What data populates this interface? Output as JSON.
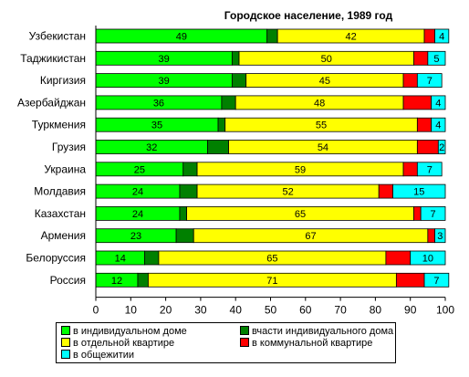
{
  "chart_data": {
    "type": "bar",
    "orientation": "horizontal",
    "stacked": true,
    "title": "Городское население, 1989 год",
    "xlim": [
      0,
      100
    ],
    "x_ticks": [
      0,
      10,
      20,
      30,
      40,
      50,
      60,
      70,
      80,
      90,
      100
    ],
    "grid": false,
    "legend_position": "bottom",
    "categories": [
      "Узбекистан",
      "Таджикистан",
      "Киргизия",
      "Азербайджан",
      "Туркмения",
      "Грузия",
      "Украина",
      "Молдавия",
      "Казахстан",
      "Армения",
      "Белоруссия",
      "Россия"
    ],
    "series": [
      {
        "name": "в индивидуальном доме",
        "color": "#00ff00",
        "values": [
          49,
          39,
          39,
          36,
          35,
          32,
          25,
          24,
          24,
          23,
          14,
          12
        ]
      },
      {
        "name": "вчасти индивидуального дома",
        "color": "#008000",
        "values": [
          3,
          2,
          4,
          4,
          2,
          6,
          4,
          5,
          2,
          5,
          4,
          3
        ]
      },
      {
        "name": "в отдельной квартире",
        "color": "#ffff00",
        "values": [
          42,
          50,
          45,
          48,
          55,
          54,
          59,
          52,
          65,
          67,
          65,
          71
        ]
      },
      {
        "name": "в коммунальной квартире",
        "color": "#ff0000",
        "values": [
          3,
          4,
          4,
          8,
          4,
          6,
          4,
          4,
          2,
          2,
          7,
          8
        ]
      },
      {
        "name": "в общежитии",
        "color": "#00ffff",
        "values": [
          4,
          5,
          7,
          4,
          4,
          2,
          7,
          15,
          7,
          3,
          10,
          7
        ]
      }
    ],
    "labeled_series": [
      0,
      2,
      4
    ]
  }
}
